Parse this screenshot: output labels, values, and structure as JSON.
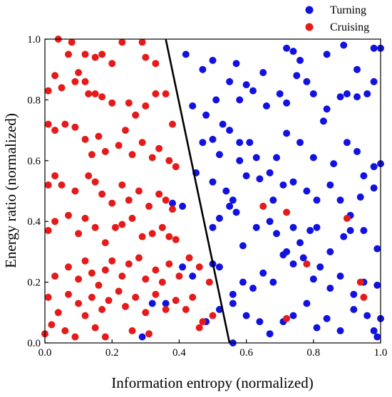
{
  "chart_data": {
    "type": "scatter",
    "title": "",
    "xlabel": "Information entropy (normalized)",
    "ylabel": "Energy ratio (normalized)",
    "xlim": [
      0.0,
      1.0
    ],
    "ylim": [
      0.0,
      1.0
    ],
    "xticks": [
      "0.0",
      "0.2",
      "0.4",
      "0.6",
      "0.8",
      "1.0"
    ],
    "yticks": [
      "0.0",
      "0.2",
      "0.4",
      "0.6",
      "0.8",
      "1.0"
    ],
    "grid": false,
    "legend_position": "top-right, outside above plot",
    "decision_boundary": {
      "x": [
        0.36,
        0.55
      ],
      "y": [
        1.0,
        0.0
      ],
      "color": "#000000"
    },
    "series": [
      {
        "name": "Turning",
        "color": "#1212e0",
        "points": [
          [
            0.42,
            0.95
          ],
          [
            0.47,
            0.9
          ],
          [
            0.5,
            0.93
          ],
          [
            0.57,
            0.92
          ],
          [
            0.55,
            0.86
          ],
          [
            0.6,
            0.85
          ],
          [
            0.65,
            0.89
          ],
          [
            0.72,
            0.97
          ],
          [
            0.74,
            0.96
          ],
          [
            0.76,
            0.93
          ],
          [
            0.84,
            0.95
          ],
          [
            0.89,
            0.98
          ],
          [
            0.93,
            0.9
          ],
          [
            0.98,
            0.97
          ],
          [
            1.0,
            0.97
          ],
          [
            0.44,
            0.78
          ],
          [
            0.48,
            0.75
          ],
          [
            0.51,
            0.8
          ],
          [
            0.53,
            0.72
          ],
          [
            0.58,
            0.8
          ],
          [
            0.62,
            0.83
          ],
          [
            0.66,
            0.78
          ],
          [
            0.7,
            0.82
          ],
          [
            0.72,
            0.79
          ],
          [
            0.75,
            0.88
          ],
          [
            0.78,
            0.86
          ],
          [
            0.8,
            0.82
          ],
          [
            0.84,
            0.77
          ],
          [
            0.88,
            0.81
          ],
          [
            0.9,
            0.82
          ],
          [
            0.93,
            0.81
          ],
          [
            0.96,
            0.82
          ],
          [
            0.98,
            0.86
          ],
          [
            0.47,
            0.66
          ],
          [
            0.5,
            0.67
          ],
          [
            0.52,
            0.62
          ],
          [
            0.55,
            0.7
          ],
          [
            0.58,
            0.66
          ],
          [
            0.61,
            0.66
          ],
          [
            0.63,
            0.61
          ],
          [
            0.67,
            0.56
          ],
          [
            0.69,
            0.61
          ],
          [
            0.72,
            0.69
          ],
          [
            0.76,
            0.66
          ],
          [
            0.8,
            0.61
          ],
          [
            0.83,
            0.73
          ],
          [
            0.86,
            0.59
          ],
          [
            0.9,
            0.66
          ],
          [
            0.93,
            0.63
          ],
          [
            0.95,
            0.55
          ],
          [
            0.98,
            0.58
          ],
          [
            1.0,
            0.59
          ],
          [
            0.45,
            0.56
          ],
          [
            0.5,
            0.53
          ],
          [
            0.54,
            0.5
          ],
          [
            0.56,
            0.47
          ],
          [
            0.58,
            0.6
          ],
          [
            0.6,
            0.55
          ],
          [
            0.64,
            0.54
          ],
          [
            0.68,
            0.47
          ],
          [
            0.71,
            0.52
          ],
          [
            0.74,
            0.53
          ],
          [
            0.78,
            0.5
          ],
          [
            0.81,
            0.47
          ],
          [
            0.85,
            0.52
          ],
          [
            0.88,
            0.47
          ],
          [
            0.91,
            0.42
          ],
          [
            0.94,
            0.48
          ],
          [
            0.98,
            0.51
          ],
          [
            0.38,
            0.46
          ],
          [
            0.41,
            0.45
          ],
          [
            0.5,
            0.38
          ],
          [
            0.52,
            0.41
          ],
          [
            0.55,
            0.45
          ],
          [
            0.57,
            0.43
          ],
          [
            0.59,
            0.32
          ],
          [
            0.63,
            0.38
          ],
          [
            0.67,
            0.4
          ],
          [
            0.69,
            0.36
          ],
          [
            0.72,
            0.3
          ],
          [
            0.74,
            0.38
          ],
          [
            0.76,
            0.33
          ],
          [
            0.79,
            0.37
          ],
          [
            0.81,
            0.38
          ],
          [
            0.85,
            0.3
          ],
          [
            0.89,
            0.35
          ],
          [
            0.91,
            0.37
          ],
          [
            0.95,
            0.37
          ],
          [
            0.99,
            0.31
          ],
          [
            0.41,
            0.25
          ],
          [
            0.44,
            0.22
          ],
          [
            0.5,
            0.26
          ],
          [
            0.52,
            0.25
          ],
          [
            0.56,
            0.16
          ],
          [
            0.59,
            0.2
          ],
          [
            0.62,
            0.18
          ],
          [
            0.65,
            0.23
          ],
          [
            0.68,
            0.2
          ],
          [
            0.71,
            0.29
          ],
          [
            0.74,
            0.26
          ],
          [
            0.77,
            0.28
          ],
          [
            0.8,
            0.21
          ],
          [
            0.82,
            0.25
          ],
          [
            0.85,
            0.18
          ],
          [
            0.88,
            0.22
          ],
          [
            0.92,
            0.16
          ],
          [
            0.95,
            0.2
          ],
          [
            0.99,
            0.19
          ],
          [
            0.32,
            0.13
          ],
          [
            0.36,
            0.13
          ],
          [
            0.48,
            0.07
          ],
          [
            0.52,
            0.11
          ],
          [
            0.56,
            0.13
          ],
          [
            0.6,
            0.09
          ],
          [
            0.64,
            0.07
          ],
          [
            0.67,
            0.03
          ],
          [
            0.71,
            0.07
          ],
          [
            0.74,
            0.09
          ],
          [
            0.78,
            0.13
          ],
          [
            0.81,
            0.05
          ],
          [
            0.84,
            0.08
          ],
          [
            0.88,
            0.04
          ],
          [
            0.92,
            0.11
          ],
          [
            0.96,
            0.09
          ],
          [
            0.98,
            0.04
          ],
          [
            1.0,
            0.08
          ],
          [
            0.29,
            0.02
          ],
          [
            0.56,
            0.0
          ],
          [
            0.99,
            0.02
          ]
        ]
      },
      {
        "name": "Cruising",
        "color": "#e51a1a",
        "points": [
          [
            0.04,
            1.0
          ],
          [
            0.07,
            0.95
          ],
          [
            0.08,
            0.99
          ],
          [
            0.12,
            0.95
          ],
          [
            0.15,
            0.94
          ],
          [
            0.17,
            0.95
          ],
          [
            0.2,
            0.92
          ],
          [
            0.23,
            0.99
          ],
          [
            0.29,
            0.99
          ],
          [
            0.3,
            0.94
          ],
          [
            0.33,
            0.92
          ],
          [
            0.01,
            0.83
          ],
          [
            0.03,
            0.88
          ],
          [
            0.05,
            0.84
          ],
          [
            0.09,
            0.86
          ],
          [
            0.1,
            0.89
          ],
          [
            0.12,
            0.86
          ],
          [
            0.13,
            0.82
          ],
          [
            0.15,
            0.82
          ],
          [
            0.17,
            0.81
          ],
          [
            0.2,
            0.79
          ],
          [
            0.25,
            0.79
          ],
          [
            0.27,
            0.75
          ],
          [
            0.3,
            0.78
          ],
          [
            0.33,
            0.82
          ],
          [
            0.36,
            0.82
          ],
          [
            0.38,
            0.72
          ],
          [
            0.01,
            0.72
          ],
          [
            0.03,
            0.7
          ],
          [
            0.06,
            0.72
          ],
          [
            0.09,
            0.71
          ],
          [
            0.12,
            0.67
          ],
          [
            0.14,
            0.62
          ],
          [
            0.16,
            0.68
          ],
          [
            0.18,
            0.63
          ],
          [
            0.22,
            0.65
          ],
          [
            0.24,
            0.7
          ],
          [
            0.26,
            0.62
          ],
          [
            0.29,
            0.66
          ],
          [
            0.32,
            0.61
          ],
          [
            0.34,
            0.64
          ],
          [
            0.37,
            0.6
          ],
          [
            0.39,
            0.58
          ],
          [
            0.01,
            0.52
          ],
          [
            0.03,
            0.55
          ],
          [
            0.05,
            0.52
          ],
          [
            0.09,
            0.5
          ],
          [
            0.13,
            0.55
          ],
          [
            0.15,
            0.53
          ],
          [
            0.17,
            0.49
          ],
          [
            0.2,
            0.46
          ],
          [
            0.23,
            0.52
          ],
          [
            0.25,
            0.47
          ],
          [
            0.28,
            0.5
          ],
          [
            0.31,
            0.45
          ],
          [
            0.34,
            0.49
          ],
          [
            0.36,
            0.47
          ],
          [
            0.38,
            0.44
          ],
          [
            0.01,
            0.37
          ],
          [
            0.03,
            0.4
          ],
          [
            0.07,
            0.42
          ],
          [
            0.1,
            0.36
          ],
          [
            0.12,
            0.41
          ],
          [
            0.15,
            0.38
          ],
          [
            0.18,
            0.33
          ],
          [
            0.21,
            0.38
          ],
          [
            0.23,
            0.39
          ],
          [
            0.26,
            0.41
          ],
          [
            0.29,
            0.35
          ],
          [
            0.32,
            0.36
          ],
          [
            0.35,
            0.38
          ],
          [
            0.37,
            0.35
          ],
          [
            0.39,
            0.34
          ],
          [
            0.65,
            0.45
          ],
          [
            0.72,
            0.43
          ],
          [
            0.9,
            0.41
          ],
          [
            0.03,
            0.22
          ],
          [
            0.07,
            0.25
          ],
          [
            0.1,
            0.21
          ],
          [
            0.12,
            0.27
          ],
          [
            0.14,
            0.23
          ],
          [
            0.16,
            0.19
          ],
          [
            0.18,
            0.24
          ],
          [
            0.2,
            0.27
          ],
          [
            0.23,
            0.22
          ],
          [
            0.25,
            0.26
          ],
          [
            0.28,
            0.28
          ],
          [
            0.3,
            0.21
          ],
          [
            0.33,
            0.24
          ],
          [
            0.35,
            0.2
          ],
          [
            0.37,
            0.26
          ],
          [
            0.4,
            0.22
          ],
          [
            0.43,
            0.28
          ],
          [
            0.46,
            0.25
          ],
          [
            0.49,
            0.2
          ],
          [
            0.78,
            0.26
          ],
          [
            0.94,
            0.2
          ],
          [
            0.01,
            0.15
          ],
          [
            0.04,
            0.1
          ],
          [
            0.07,
            0.16
          ],
          [
            0.1,
            0.13
          ],
          [
            0.12,
            0.09
          ],
          [
            0.14,
            0.15
          ],
          [
            0.17,
            0.11
          ],
          [
            0.19,
            0.14
          ],
          [
            0.22,
            0.17
          ],
          [
            0.24,
            0.12
          ],
          [
            0.27,
            0.15
          ],
          [
            0.3,
            0.1
          ],
          [
            0.33,
            0.16
          ],
          [
            0.36,
            0.11
          ],
          [
            0.39,
            0.14
          ],
          [
            0.42,
            0.11
          ],
          [
            0.44,
            0.15
          ],
          [
            0.47,
            0.07
          ],
          [
            0.5,
            0.09
          ],
          [
            0.72,
            0.08
          ],
          [
            0.95,
            0.15
          ],
          [
            0.0,
            0.03
          ],
          [
            0.02,
            0.06
          ],
          [
            0.06,
            0.04
          ],
          [
            0.09,
            0.02
          ],
          [
            0.15,
            0.05
          ],
          [
            0.18,
            0.02
          ],
          [
            0.26,
            0.04
          ],
          [
            0.31,
            0.03
          ],
          [
            0.46,
            0.05
          ]
        ]
      }
    ]
  }
}
